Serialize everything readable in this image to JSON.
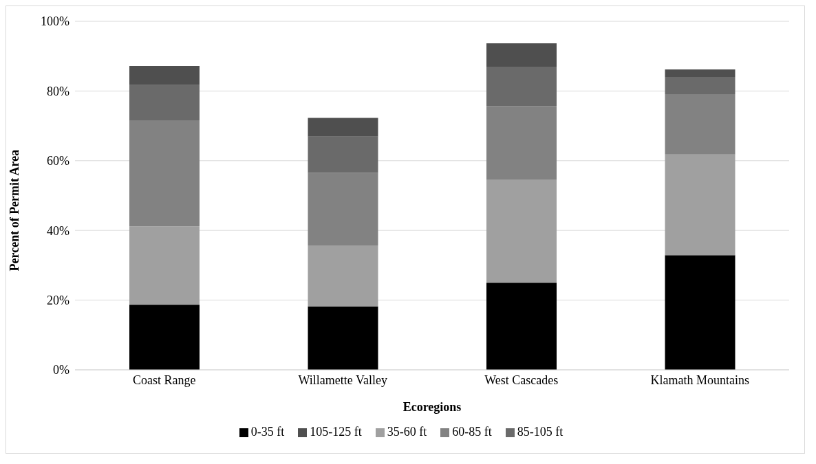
{
  "chart_data": {
    "type": "bar",
    "stacked": true,
    "xlabel": "Ecoregions",
    "ylabel": "Percent of Permit Area",
    "categories": [
      "Coast Range",
      "Willamette Valley",
      "West Cascades",
      "Klamath Mountains"
    ],
    "series": [
      {
        "name": "0-35 ft",
        "color": "#000000",
        "values": [
          18.7,
          18.2,
          25.0,
          32.9
        ]
      },
      {
        "name": "35-60 ft",
        "color": "#a0a0a0",
        "values": [
          22.4,
          17.5,
          29.5,
          28.9
        ]
      },
      {
        "name": "60-85 ft",
        "color": "#828282",
        "values": [
          30.5,
          20.8,
          21.2,
          17.3
        ]
      },
      {
        "name": "85-105 ft",
        "color": "#6a6a6a",
        "values": [
          10.1,
          10.4,
          11.3,
          4.9
        ]
      },
      {
        "name": "105-125 ft",
        "color": "#4f4f4f",
        "values": [
          5.5,
          5.4,
          6.7,
          2.2
        ]
      }
    ],
    "ylim": [
      0,
      100
    ],
    "yticks": [
      {
        "value": 0,
        "label": "0%"
      },
      {
        "value": 20,
        "label": "20%"
      },
      {
        "value": 40,
        "label": "40%"
      },
      {
        "value": 60,
        "label": "60%"
      },
      {
        "value": 80,
        "label": "80%"
      },
      {
        "value": 100,
        "label": "100%"
      }
    ],
    "grid": "y",
    "legend": "bottom"
  }
}
